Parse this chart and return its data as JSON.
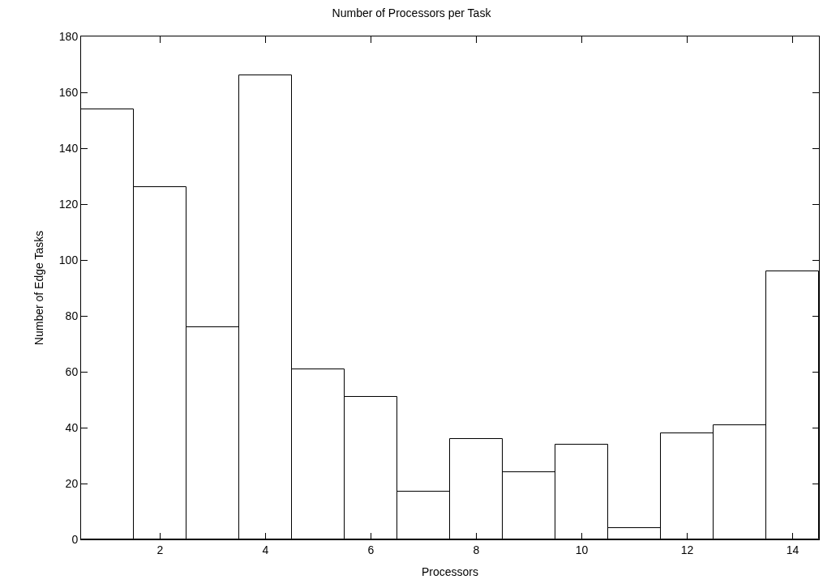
{
  "chart_data": {
    "type": "bar",
    "title": "Number of Processors per Task",
    "xlabel": "Processors",
    "ylabel": "Number of Edge Tasks",
    "x": [
      1,
      2,
      3,
      4,
      5,
      6,
      7,
      8,
      9,
      10,
      11,
      12,
      13,
      14
    ],
    "values": [
      154,
      126,
      76,
      166,
      61,
      51,
      17,
      36,
      24,
      34,
      4,
      38,
      41,
      96
    ],
    "color": "#ffffff",
    "xlim": [
      0.5,
      14.5
    ],
    "xticks": [
      2,
      4,
      6,
      8,
      10,
      12,
      14
    ],
    "ylim": [
      0,
      180
    ],
    "yticks": [
      0,
      20,
      40,
      60,
      80,
      100,
      120,
      140,
      160,
      180
    ],
    "grid": false
  }
}
